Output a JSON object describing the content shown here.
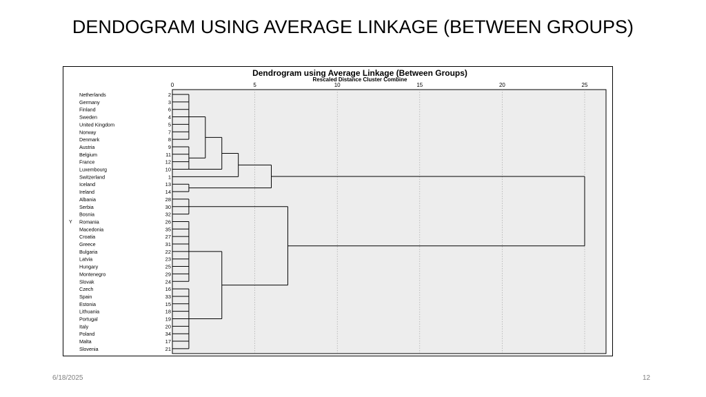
{
  "slide": {
    "title": "DENDOGRAM USING AVERAGE LINKAGE (BETWEEN GROUPS)",
    "date": "6/18/2025",
    "page_number": "12"
  },
  "chart_data": {
    "type": "dendrogram",
    "title": "Dendrogram using Average Linkage (Between Groups)",
    "subtitle": "Rescaled Distance Cluster Combine",
    "side_label": "Y",
    "xlim": [
      0,
      25
    ],
    "x_ticks": [
      "0",
      "5",
      "10",
      "15",
      "20",
      "25"
    ],
    "grid": true,
    "leaves": [
      {
        "label": "Netherlands",
        "id": "2"
      },
      {
        "label": "Germany",
        "id": "3"
      },
      {
        "label": "Finland",
        "id": "6"
      },
      {
        "label": "Sweden",
        "id": "4"
      },
      {
        "label": "United Kingdom",
        "id": "5"
      },
      {
        "label": "Norway",
        "id": "7"
      },
      {
        "label": "Denmark",
        "id": "8"
      },
      {
        "label": "Austria",
        "id": "9"
      },
      {
        "label": "Belgium",
        "id": "11"
      },
      {
        "label": "France",
        "id": "12"
      },
      {
        "label": "Luxembourg",
        "id": "10"
      },
      {
        "label": "Switzerland",
        "id": "1"
      },
      {
        "label": "Iceland",
        "id": "13"
      },
      {
        "label": "Ireland",
        "id": "14"
      },
      {
        "label": "Albania",
        "id": "28"
      },
      {
        "label": "Serbia",
        "id": "30"
      },
      {
        "label": "Bosnia",
        "id": "32"
      },
      {
        "label": "Romania",
        "id": "26"
      },
      {
        "label": "Macedonia",
        "id": "35"
      },
      {
        "label": "Croatia",
        "id": "27"
      },
      {
        "label": "Greece",
        "id": "31"
      },
      {
        "label": "Bulgaria",
        "id": "22"
      },
      {
        "label": "Latvia",
        "id": "23"
      },
      {
        "label": "Hungary",
        "id": "25"
      },
      {
        "label": "Montenegro",
        "id": "29"
      },
      {
        "label": "Slovak",
        "id": "24"
      },
      {
        "label": "Czech",
        "id": "16"
      },
      {
        "label": "Spain",
        "id": "33"
      },
      {
        "label": "Estonia",
        "id": "15"
      },
      {
        "label": "Lithuania",
        "id": "18"
      },
      {
        "label": "Portugal",
        "id": "19"
      },
      {
        "label": "Italy",
        "id": "20"
      },
      {
        "label": "Poland",
        "id": "34"
      },
      {
        "label": "Malta",
        "id": "17"
      },
      {
        "label": "Slovenia",
        "id": "21"
      }
    ],
    "merges": [
      {
        "left": "L0-L9",
        "right": "L10",
        "distance": 1.0
      },
      {
        "left": "L12",
        "right": "L13",
        "distance": 1.0
      },
      {
        "left": "L14-L34",
        "right": "L14-L34",
        "distance": 1.0
      },
      {
        "left": "G1",
        "right": "G2",
        "distance": 2.0
      },
      {
        "left": "G3",
        "right": "G4",
        "distance": 3.0
      },
      {
        "left": "G5",
        "right": "L11",
        "distance": 4.0
      },
      {
        "left": "G6",
        "right": "Iceland-Ireland",
        "distance": 6.0
      },
      {
        "left": "Balkans",
        "right": "Central",
        "distance": 3.0
      },
      {
        "left": "A1",
        "right": "A2",
        "distance": 7.0
      },
      {
        "left": "Western",
        "right": "Eastern",
        "distance": 25.0
      }
    ]
  }
}
